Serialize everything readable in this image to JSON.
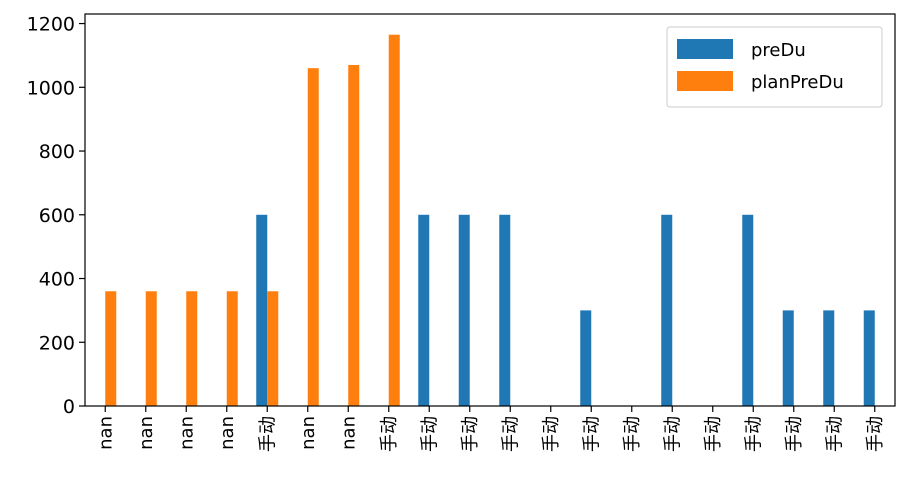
{
  "chart_data": {
    "type": "bar",
    "categories": [
      "nan",
      "nan",
      "nan",
      "nan",
      "手动",
      "nan",
      "nan",
      "手动",
      "手动",
      "手动",
      "手动",
      "手动",
      "手动",
      "手动",
      "手动",
      "手动",
      "手动",
      "手动",
      "手动",
      "手动"
    ],
    "series": [
      {
        "name": "preDu",
        "color": "#1f77b4",
        "values": [
          0,
          0,
          0,
          0,
          600,
          0,
          0,
          0,
          600,
          600,
          600,
          0,
          300,
          0,
          600,
          0,
          600,
          300,
          300,
          300
        ]
      },
      {
        "name": "planPreDu",
        "color": "#ff7f0e",
        "values": [
          360,
          360,
          360,
          360,
          360,
          1060,
          1070,
          1165,
          0,
          0,
          0,
          0,
          0,
          0,
          0,
          0,
          0,
          0,
          0,
          0
        ]
      }
    ],
    "yticks": [
      0,
      200,
      400,
      600,
      800,
      1000,
      1200
    ],
    "ylim": [
      0,
      1230
    ],
    "legend_position": "top-right",
    "grid": false,
    "title": "",
    "xlabel": "",
    "ylabel": ""
  }
}
